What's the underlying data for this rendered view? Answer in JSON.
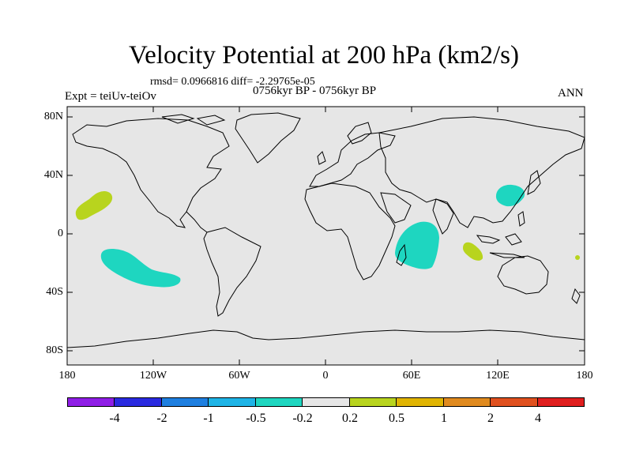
{
  "header": {
    "title": "Velocity Potential at 200 hPa (km2/s)",
    "stats": "rmsd= 0.0966816 diff= -2.29765e-05",
    "period": "0756kyr BP - 0756kyr BP",
    "experiment": "Expt = teiUv-teiOv",
    "season": "ANN"
  },
  "map": {
    "background_color": "#e6e6e6",
    "lat_ticks": [
      "80N",
      "40N",
      "0",
      "40S",
      "80S"
    ],
    "lon_ticks": [
      "180",
      "120W",
      "60W",
      "0",
      "60E",
      "120E",
      "180"
    ],
    "anomalies": [
      {
        "label": "central pacific north",
        "color": "#b8d41e",
        "sign": "positive"
      },
      {
        "label": "south pacific",
        "color": "#1ed6c0",
        "sign": "negative"
      },
      {
        "label": "southwest indian ocean",
        "color": "#1ed6c0",
        "sign": "negative"
      },
      {
        "label": "east china sea",
        "color": "#1ed6c0",
        "sign": "negative"
      },
      {
        "label": "east indian ocean",
        "color": "#b8d41e",
        "sign": "positive"
      },
      {
        "label": "west pacific dot",
        "color": "#b8d41e",
        "sign": "positive"
      }
    ]
  },
  "colorbar": {
    "colors": [
      "#8f1ee6",
      "#2a2ae0",
      "#1e7fe0",
      "#1eb4e6",
      "#1ed6c0",
      "#e6e6e6",
      "#b8d41e",
      "#e0b400",
      "#e08a1e",
      "#e0501e",
      "#e01e1e"
    ],
    "labels": [
      "-4",
      "-2",
      "-1",
      "-0.5",
      "-0.2",
      "0.2",
      "0.5",
      "1",
      "2",
      "4"
    ]
  }
}
